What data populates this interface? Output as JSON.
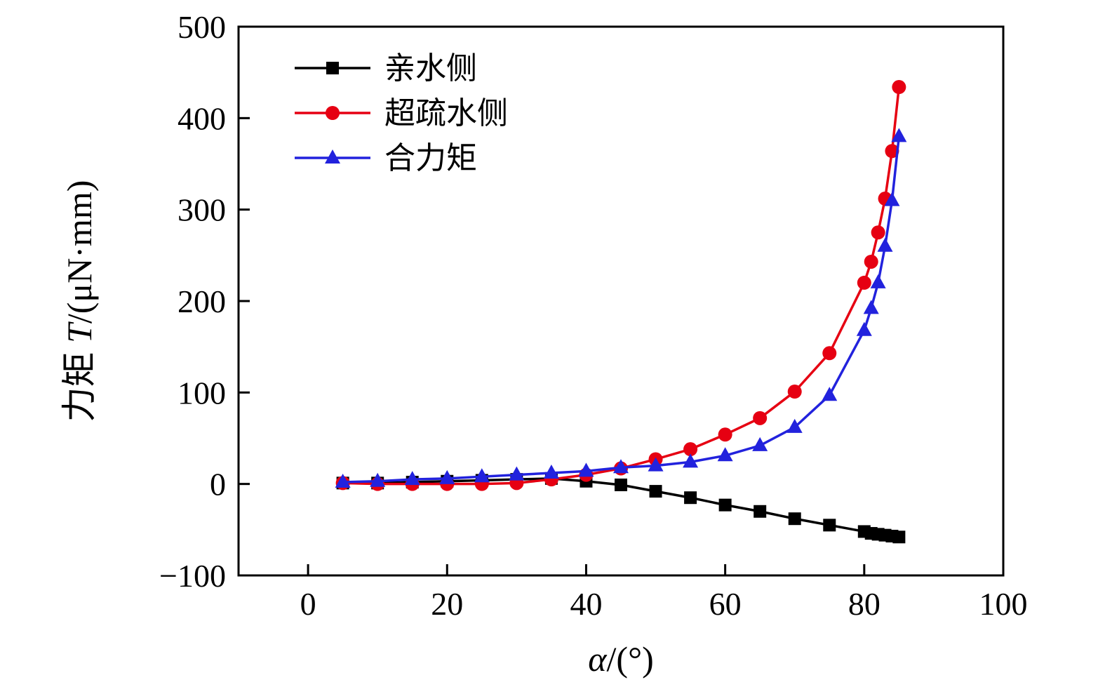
{
  "chart_data": {
    "type": "line",
    "title": "",
    "xlabel": {
      "var": "α",
      "rest": "/(°)"
    },
    "ylabel": {
      "cjk": "力矩 ",
      "var": "T",
      "rest": "/(μN·mm)"
    },
    "xlim": [
      -10,
      100
    ],
    "ylim": [
      -100,
      500
    ],
    "x_ticks": {
      "values": [
        0,
        20,
        40,
        60,
        80,
        100
      ],
      "labels": [
        "0",
        "20",
        "40",
        "60",
        "80",
        "100"
      ]
    },
    "y_ticks": {
      "values": [
        -100,
        0,
        100,
        200,
        300,
        400,
        500
      ],
      "labels": [
        "−100",
        "0",
        "100",
        "200",
        "300",
        "400",
        "500"
      ]
    },
    "grid": false,
    "legend_position": "top-left-inside",
    "x": [
      5,
      10,
      15,
      20,
      25,
      30,
      35,
      40,
      45,
      50,
      55,
      60,
      65,
      70,
      75,
      80,
      81,
      82,
      83,
      84,
      85
    ],
    "series": [
      {
        "name": "亲水侧",
        "marker": "square",
        "color": "#000000",
        "values": [
          1,
          1,
          2,
          3,
          4,
          5,
          6,
          3,
          -1,
          -8,
          -15,
          -23,
          -30,
          -38,
          -45,
          -52,
          -54,
          -55,
          -56,
          -57,
          -58
        ]
      },
      {
        "name": "超疏水侧",
        "marker": "circle",
        "color": "#e60012",
        "values": [
          1,
          0,
          0,
          0,
          0,
          1,
          5,
          10,
          17,
          27,
          38,
          54,
          72,
          101,
          143,
          220,
          243,
          275,
          312,
          364,
          434
        ]
      },
      {
        "name": "合力矩",
        "marker": "triangle",
        "color": "#2222dd",
        "values": [
          2,
          3,
          5,
          6,
          8,
          10,
          12,
          14,
          18,
          20,
          24,
          31,
          42,
          62,
          97,
          168,
          192,
          220,
          260,
          310,
          380
        ]
      }
    ]
  }
}
